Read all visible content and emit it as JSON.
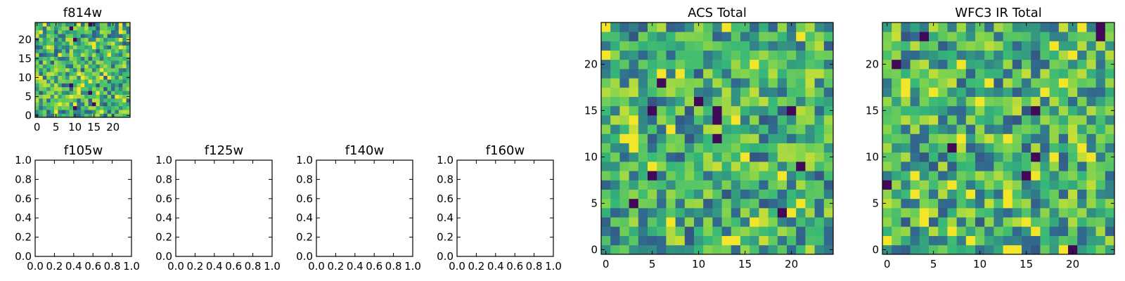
{
  "figure": {
    "colormap": [
      "#440154",
      "#31688e",
      "#35b779",
      "#7ad151",
      "#fde725"
    ]
  },
  "chart_data": [
    {
      "type": "heatmap",
      "title": "f814w",
      "size": 25,
      "seed": 11,
      "xlim": [
        -0.5,
        24.5
      ],
      "ylim": [
        -0.5,
        24.5
      ],
      "xticks": [
        0,
        5,
        10,
        15,
        20
      ],
      "yticks": [
        0,
        5,
        10,
        15,
        20
      ],
      "xticklabels": [
        "0",
        "5",
        "10",
        "15",
        "20"
      ],
      "yticklabels": [
        "0",
        "5",
        "10",
        "15",
        "20"
      ]
    },
    {
      "type": "empty",
      "title": "f105w",
      "xlim": [
        0,
        1
      ],
      "ylim": [
        0,
        1
      ],
      "xticks": [
        0,
        0.2,
        0.4,
        0.6,
        0.8,
        1
      ],
      "yticks": [
        0,
        0.2,
        0.4,
        0.6,
        0.8,
        1
      ],
      "xticklabels": [
        "0.0",
        "0.2",
        "0.4",
        "0.6",
        "0.8",
        "1.0"
      ],
      "yticklabels": [
        "0.0",
        "0.2",
        "0.4",
        "0.6",
        "0.8",
        "1.0"
      ]
    },
    {
      "type": "empty",
      "title": "f125w",
      "xlim": [
        0,
        1
      ],
      "ylim": [
        0,
        1
      ],
      "xticks": [
        0,
        0.2,
        0.4,
        0.6,
        0.8,
        1
      ],
      "yticks": [
        0,
        0.2,
        0.4,
        0.6,
        0.8,
        1
      ],
      "xticklabels": [
        "0.0",
        "0.2",
        "0.4",
        "0.6",
        "0.8",
        "1.0"
      ],
      "yticklabels": [
        "0.0",
        "0.2",
        "0.4",
        "0.6",
        "0.8",
        "1.0"
      ]
    },
    {
      "type": "empty",
      "title": "f140w",
      "xlim": [
        0,
        1
      ],
      "ylim": [
        0,
        1
      ],
      "xticks": [
        0,
        0.2,
        0.4,
        0.6,
        0.8,
        1
      ],
      "yticks": [
        0,
        0.2,
        0.4,
        0.6,
        0.8,
        1
      ],
      "xticklabels": [
        "0.0",
        "0.2",
        "0.4",
        "0.6",
        "0.8",
        "1.0"
      ],
      "yticklabels": [
        "0.0",
        "0.2",
        "0.4",
        "0.6",
        "0.8",
        "1.0"
      ]
    },
    {
      "type": "empty",
      "title": "f160w",
      "xlim": [
        0,
        1
      ],
      "ylim": [
        0,
        1
      ],
      "xticks": [
        0,
        0.2,
        0.4,
        0.6,
        0.8,
        1
      ],
      "yticks": [
        0,
        0.2,
        0.4,
        0.6,
        0.8,
        1
      ],
      "xticklabels": [
        "0.0",
        "0.2",
        "0.4",
        "0.6",
        "0.8",
        "1.0"
      ],
      "yticklabels": [
        "0.0",
        "0.2",
        "0.4",
        "0.6",
        "0.8",
        "1.0"
      ]
    },
    {
      "type": "heatmap",
      "title": "ACS Total",
      "size": 25,
      "seed": 23,
      "xlim": [
        -0.5,
        24.5
      ],
      "ylim": [
        -0.5,
        24.5
      ],
      "xticks": [
        0,
        5,
        10,
        15,
        20
      ],
      "yticks": [
        0,
        5,
        10,
        15,
        20
      ],
      "xticklabels": [
        "0",
        "5",
        "10",
        "15",
        "20"
      ],
      "yticklabels": [
        "0",
        "5",
        "10",
        "15",
        "20"
      ]
    },
    {
      "type": "heatmap",
      "title": "WFC3 IR Total",
      "size": 25,
      "seed": 37,
      "xlim": [
        -0.5,
        24.5
      ],
      "ylim": [
        -0.5,
        24.5
      ],
      "xticks": [
        0,
        5,
        10,
        15,
        20
      ],
      "yticks": [
        0,
        5,
        10,
        15,
        20
      ],
      "xticklabels": [
        "0",
        "5",
        "10",
        "15",
        "20"
      ],
      "yticklabels": [
        "0",
        "5",
        "10",
        "15",
        "20"
      ]
    }
  ]
}
